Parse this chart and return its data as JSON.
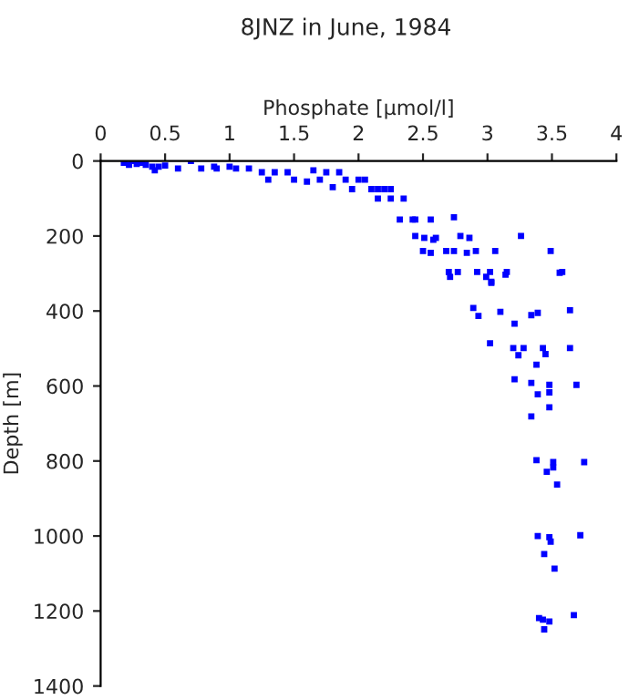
{
  "chart_data": {
    "type": "scatter",
    "title": "8JNZ in June, 1984",
    "xlabel": "Phosphate [µmol/l]",
    "ylabel": "Depth [m]",
    "xlim": [
      0,
      4
    ],
    "xticks": [
      0,
      0.5,
      1,
      1.5,
      2,
      2.5,
      3,
      3.5,
      4
    ],
    "ylim": [
      1400,
      0
    ],
    "yticks": [
      0,
      200,
      400,
      600,
      800,
      1000,
      1200,
      1400
    ],
    "grid": false,
    "marker": "square",
    "series": [
      {
        "color": "#0000ff",
        "x": [
          0.18,
          0.22,
          0.25,
          0.28,
          0.32,
          0.35,
          0.4,
          0.42,
          0.45,
          0.5,
          0.6,
          0.7,
          0.78,
          0.88,
          0.9,
          1.0,
          1.05,
          1.15,
          1.25,
          1.3,
          1.35,
          1.45,
          1.5,
          1.6,
          1.65,
          1.7,
          1.75,
          1.85,
          1.8,
          1.9,
          1.95,
          2.0,
          2.05,
          2.1,
          2.15,
          2.2,
          2.25,
          2.15,
          2.25,
          2.35,
          2.32,
          2.42,
          2.44,
          2.56,
          2.74,
          2.44,
          2.51,
          2.58,
          2.6,
          2.79,
          2.86,
          3.26,
          2.5,
          2.56,
          2.68,
          2.74,
          2.84,
          2.91,
          3.06,
          3.49,
          2.7,
          2.77,
          2.92,
          3.02,
          3.15,
          3.58,
          3.03,
          2.71,
          2.99,
          3.03,
          3.14,
          3.56,
          2.89,
          2.93,
          3.1,
          3.21,
          3.34,
          3.39,
          3.64,
          3.02,
          3.2,
          3.28,
          3.43,
          3.45,
          3.64,
          3.24,
          3.38,
          3.21,
          3.34,
          3.48,
          3.69,
          3.48,
          3.39,
          3.48,
          3.34,
          3.38,
          3.51,
          3.75,
          3.46,
          3.51,
          3.54,
          3.39,
          3.48,
          3.49,
          3.72,
          3.44,
          3.52,
          3.4,
          3.43,
          3.48,
          3.67,
          3.44
        ],
        "values": [
          5,
          10,
          0,
          8,
          5,
          10,
          15,
          25,
          15,
          12,
          20,
          0,
          20,
          15,
          20,
          15,
          20,
          20,
          30,
          50,
          30,
          30,
          50,
          55,
          25,
          50,
          30,
          30,
          70,
          50,
          75,
          50,
          50,
          75,
          75,
          75,
          75,
          100,
          100,
          100,
          156,
          156,
          156,
          156,
          150,
          200,
          205,
          210,
          205,
          200,
          205,
          200,
          240,
          245,
          240,
          240,
          245,
          240,
          240,
          240,
          296,
          296,
          296,
          296,
          296,
          296,
          325,
          309,
          309,
          322,
          303,
          298,
          392,
          413,
          402,
          434,
          411,
          405,
          398,
          486,
          499,
          499,
          499,
          515,
          499,
          518,
          543,
          582,
          592,
          597,
          597,
          617,
          622,
          657,
          681,
          798,
          803,
          803,
          829,
          817,
          863,
          1000,
          1003,
          1015,
          998,
          1048,
          1087,
          1219,
          1223,
          1228,
          1211,
          1249
        ]
      }
    ]
  }
}
